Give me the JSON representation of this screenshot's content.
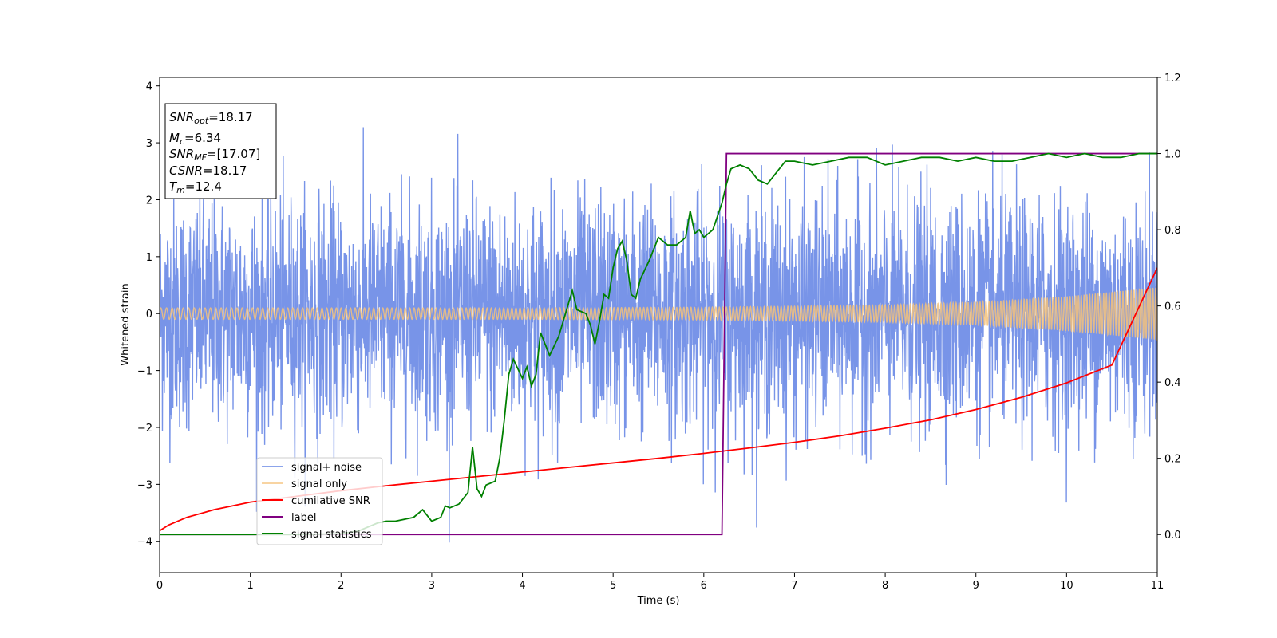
{
  "chart_data": {
    "type": "line",
    "xlabel": "Time (s)",
    "ylabel": "Whitened strain",
    "xlim": [
      0,
      11
    ],
    "ylim": [
      -4.55,
      4.15
    ],
    "y2lim": [
      -0.1,
      1.2
    ],
    "x_ticks": [
      0,
      1,
      2,
      3,
      4,
      5,
      6,
      7,
      8,
      9,
      10,
      11
    ],
    "y_ticks": [
      -4,
      -3,
      -2,
      -1,
      0,
      1,
      2,
      3,
      4
    ],
    "y2_ticks": [
      "0.0",
      "0.2",
      "0.4",
      "0.6",
      "0.8",
      "1.0",
      "1.2"
    ],
    "legend_position": "lower-left",
    "grid": false,
    "info_box": {
      "snr_opt": {
        "sym": "SNR",
        "sub": "opt",
        "value": "=18.17"
      },
      "mc": {
        "sym": "M",
        "sub": "c",
        "value": "=6.34"
      },
      "snr_mf": {
        "sym": "SNR",
        "sub": "MF",
        "value": "=[17.07]"
      },
      "csnr": {
        "sym": "CSNR",
        "value": "=18.17"
      },
      "tm": {
        "sym": "T",
        "sub": "m",
        "value": "=12.4"
      }
    },
    "series": [
      {
        "name": "signal+ noise",
        "color": "#7894e8",
        "axis": "left",
        "description_values": "noise-dominated whitened strain oscillating roughly between -2.5 and 2.5 with spikes to about ±3.7"
      },
      {
        "name": "signal only",
        "color": "#f5c27a",
        "axis": "left",
        "amplitude_envelope": {
          "x": [
            0,
            2,
            4,
            6,
            8,
            9,
            10,
            11
          ],
          "amp": [
            0.1,
            0.1,
            0.1,
            0.11,
            0.15,
            0.2,
            0.3,
            0.46
          ]
        }
      },
      {
        "name": "cumilative SNR",
        "color": "#ff0000",
        "axis": "right",
        "x": [
          0,
          0.1,
          0.3,
          0.6,
          1,
          1.5,
          2,
          2.5,
          3,
          3.5,
          4,
          4.5,
          5,
          5.5,
          6,
          6.5,
          7,
          7.5,
          8,
          8.5,
          9,
          9.5,
          10,
          10.5,
          11
        ],
        "y": [
          0.01,
          0.025,
          0.045,
          0.065,
          0.085,
          0.1,
          0.115,
          0.128,
          0.14,
          0.152,
          0.164,
          0.176,
          0.188,
          0.2,
          0.213,
          0.227,
          0.242,
          0.259,
          0.279,
          0.301,
          0.328,
          0.36,
          0.398,
          0.445,
          0.7
        ]
      },
      {
        "name": "label",
        "color": "#800080",
        "axis": "right",
        "x": [
          0,
          6.2,
          6.25,
          11
        ],
        "y": [
          0,
          0,
          1,
          1
        ]
      },
      {
        "name": "signal statistics",
        "color": "#008000",
        "axis": "right",
        "x": [
          0,
          0.5,
          1,
          1.5,
          2,
          2.2,
          2.4,
          2.5,
          2.6,
          2.8,
          2.9,
          3.0,
          3.1,
          3.15,
          3.2,
          3.3,
          3.4,
          3.45,
          3.5,
          3.55,
          3.6,
          3.7,
          3.75,
          3.8,
          3.85,
          3.9,
          4.0,
          4.05,
          4.1,
          4.15,
          4.2,
          4.3,
          4.4,
          4.5,
          4.55,
          4.6,
          4.7,
          4.75,
          4.8,
          4.85,
          4.9,
          4.95,
          5.0,
          5.05,
          5.1,
          5.15,
          5.2,
          5.25,
          5.3,
          5.4,
          5.5,
          5.6,
          5.7,
          5.8,
          5.85,
          5.9,
          5.95,
          6.0,
          6.1,
          6.2,
          6.25,
          6.3,
          6.4,
          6.5,
          6.6,
          6.7,
          6.8,
          6.9,
          7.0,
          7.2,
          7.4,
          7.6,
          7.8,
          8.0,
          8.2,
          8.4,
          8.6,
          8.8,
          9.0,
          9.2,
          9.4,
          9.6,
          9.8,
          10.0,
          10.2,
          10.4,
          10.6,
          10.8,
          11
        ],
        "y": [
          0.0,
          0.0,
          0.0,
          0.0,
          0.002,
          0.01,
          0.03,
          0.035,
          0.035,
          0.045,
          0.065,
          0.035,
          0.045,
          0.075,
          0.07,
          0.08,
          0.11,
          0.23,
          0.12,
          0.1,
          0.13,
          0.14,
          0.2,
          0.3,
          0.42,
          0.46,
          0.41,
          0.44,
          0.39,
          0.42,
          0.53,
          0.47,
          0.52,
          0.6,
          0.64,
          0.59,
          0.58,
          0.55,
          0.5,
          0.56,
          0.63,
          0.62,
          0.7,
          0.75,
          0.77,
          0.72,
          0.63,
          0.62,
          0.67,
          0.72,
          0.78,
          0.76,
          0.76,
          0.78,
          0.85,
          0.79,
          0.8,
          0.78,
          0.8,
          0.87,
          0.92,
          0.96,
          0.97,
          0.96,
          0.93,
          0.92,
          0.95,
          0.98,
          0.98,
          0.97,
          0.98,
          0.99,
          0.99,
          0.97,
          0.98,
          0.99,
          0.99,
          0.98,
          0.99,
          0.98,
          0.98,
          0.99,
          1.0,
          0.99,
          1.0,
          0.99,
          0.99,
          1.0,
          1.0
        ]
      }
    ]
  }
}
